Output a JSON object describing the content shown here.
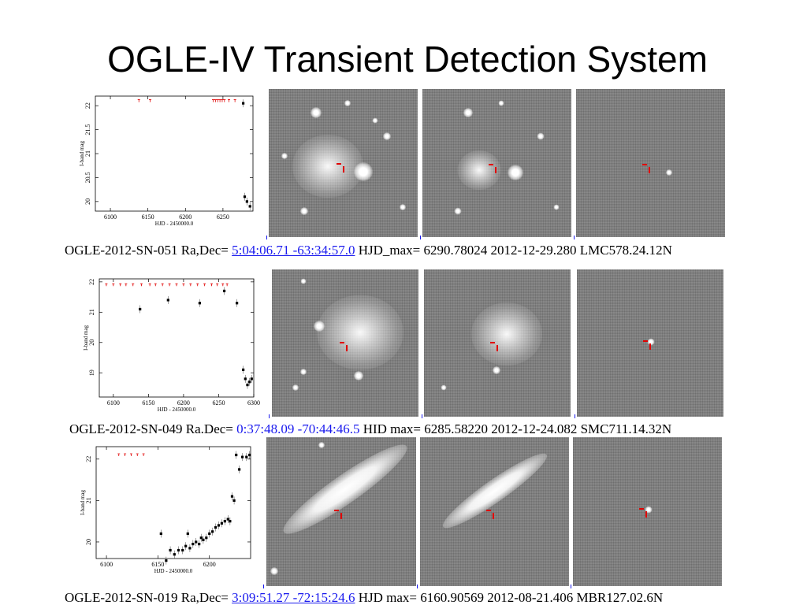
{
  "title": "OGLE-IV Transient Detection System",
  "colors": {
    "link": "#1a1aee",
    "marker": "#e00000"
  },
  "rows": [
    {
      "caption": {
        "prefix": "OGLE-2012-SN-051 Ra,Dec=",
        "coords": "5:04:06.71 -63:34:57.0",
        "suffix": "HJD_max= 6290.78024 2012-12-29.280 LMC578.24.12N"
      },
      "chart_data": {
        "type": "scatter",
        "title": "",
        "xlabel": "HJD - 2450000.0",
        "ylabel": "I-band mag",
        "xlim": [
          6080,
          6290
        ],
        "ylim": [
          22.2,
          19.8
        ],
        "yinvert": true,
        "x_ticks": [
          "6100",
          "6150",
          "6200",
          "6250"
        ],
        "y_ticks": [
          "20",
          "20.5",
          "21",
          "21.5",
          "22"
        ],
        "detections": [
          {
            "x": 6277,
            "y": 22.05
          },
          {
            "x": 6279,
            "y": 20.1
          },
          {
            "x": 6282,
            "y": 20.0
          },
          {
            "x": 6286,
            "y": 19.9
          }
        ],
        "upper_limits": [
          {
            "x": 6138,
            "y": 22.1
          },
          {
            "x": 6153,
            "y": 22.1
          },
          {
            "x": 6237,
            "y": 22.1
          },
          {
            "x": 6240,
            "y": 22.1
          },
          {
            "x": 6243,
            "y": 22.1
          },
          {
            "x": 6246,
            "y": 22.1
          },
          {
            "x": 6249,
            "y": 22.1
          },
          {
            "x": 6252,
            "y": 22.1
          },
          {
            "x": 6258,
            "y": 22.1
          },
          {
            "x": 6266,
            "y": 22.1
          }
        ]
      }
    },
    {
      "caption": {
        "prefix": "OGLE-2012-SN-049 Ra.Dec=",
        "coords": "0:37:48.09 -70:44:46.5",
        "suffix": "HID  max= 6285.58220 2012-12-24.082 SMC711.14.32N"
      },
      "chart_data": {
        "type": "scatter",
        "title": "",
        "xlabel": "HJD - 2450000.0",
        "ylabel": "I-band mag",
        "xlim": [
          6080,
          6300
        ],
        "ylim": [
          22.1,
          18.2
        ],
        "yinvert": true,
        "x_ticks": [
          "6100",
          "6150",
          "6200",
          "6250",
          "6300"
        ],
        "y_ticks": [
          "19",
          "20",
          "21",
          "22"
        ],
        "detections": [
          {
            "x": 6138,
            "y": 21.1
          },
          {
            "x": 6178,
            "y": 21.4
          },
          {
            "x": 6223,
            "y": 21.3
          },
          {
            "x": 6258,
            "y": 21.7
          },
          {
            "x": 6276,
            "y": 21.3
          },
          {
            "x": 6285,
            "y": 19.1
          },
          {
            "x": 6288,
            "y": 18.8
          },
          {
            "x": 6291,
            "y": 18.6
          },
          {
            "x": 6294,
            "y": 18.7
          },
          {
            "x": 6297,
            "y": 18.8
          }
        ],
        "upper_limits": [
          {
            "x": 6090,
            "y": 21.9
          },
          {
            "x": 6100,
            "y": 21.9
          },
          {
            "x": 6110,
            "y": 21.9
          },
          {
            "x": 6118,
            "y": 21.9
          },
          {
            "x": 6128,
            "y": 21.9
          },
          {
            "x": 6140,
            "y": 21.9
          },
          {
            "x": 6152,
            "y": 21.9
          },
          {
            "x": 6160,
            "y": 21.9
          },
          {
            "x": 6170,
            "y": 21.9
          },
          {
            "x": 6180,
            "y": 21.9
          },
          {
            "x": 6190,
            "y": 21.9
          },
          {
            "x": 6200,
            "y": 21.9
          },
          {
            "x": 6210,
            "y": 21.9
          },
          {
            "x": 6220,
            "y": 21.9
          },
          {
            "x": 6230,
            "y": 21.9
          },
          {
            "x": 6240,
            "y": 21.9
          },
          {
            "x": 6248,
            "y": 21.9
          },
          {
            "x": 6256,
            "y": 21.9
          },
          {
            "x": 6262,
            "y": 21.9
          }
        ]
      }
    },
    {
      "caption": {
        "prefix": "OGLE-2012-SN-019 Ra,Dec=",
        "coords": "3:09:51.27 -72:15:24.6",
        "suffix": "HJD  max= 6160.90569 2012-08-21.406 MBR127.02.6N"
      },
      "chart_data": {
        "type": "scatter",
        "title": "",
        "xlabel": "HJD - 2450000.0",
        "ylabel": "I-band mag",
        "xlim": [
          6090,
          6240
        ],
        "ylim": [
          22.3,
          19.6
        ],
        "yinvert": true,
        "x_ticks": [
          "6100",
          "6150",
          "6200"
        ],
        "y_ticks": [
          "20",
          "21",
          "22"
        ],
        "detections": [
          {
            "x": 6153,
            "y": 20.2
          },
          {
            "x": 6158,
            "y": 19.55
          },
          {
            "x": 6162,
            "y": 19.8
          },
          {
            "x": 6166,
            "y": 19.7
          },
          {
            "x": 6170,
            "y": 19.8
          },
          {
            "x": 6174,
            "y": 19.8
          },
          {
            "x": 6177,
            "y": 19.9
          },
          {
            "x": 6179,
            "y": 20.2
          },
          {
            "x": 6181,
            "y": 19.85
          },
          {
            "x": 6184,
            "y": 19.95
          },
          {
            "x": 6187,
            "y": 20.0
          },
          {
            "x": 6190,
            "y": 19.95
          },
          {
            "x": 6192,
            "y": 20.1
          },
          {
            "x": 6194,
            "y": 20.05
          },
          {
            "x": 6197,
            "y": 20.1
          },
          {
            "x": 6200,
            "y": 20.2
          },
          {
            "x": 6203,
            "y": 20.25
          },
          {
            "x": 6206,
            "y": 20.35
          },
          {
            "x": 6209,
            "y": 20.4
          },
          {
            "x": 6212,
            "y": 20.45
          },
          {
            "x": 6215,
            "y": 20.5
          },
          {
            "x": 6218,
            "y": 20.55
          },
          {
            "x": 6220,
            "y": 20.5
          },
          {
            "x": 6222,
            "y": 21.1
          },
          {
            "x": 6224,
            "y": 21.0
          },
          {
            "x": 6226,
            "y": 22.1
          },
          {
            "x": 6229,
            "y": 21.75
          },
          {
            "x": 6232,
            "y": 22.05
          },
          {
            "x": 6236,
            "y": 22.05
          },
          {
            "x": 6239,
            "y": 22.1
          }
        ],
        "upper_limits": [
          {
            "x": 6112,
            "y": 22.1
          },
          {
            "x": 6118,
            "y": 22.1
          },
          {
            "x": 6124,
            "y": 22.1
          },
          {
            "x": 6130,
            "y": 22.1
          },
          {
            "x": 6136,
            "y": 22.1
          }
        ]
      }
    }
  ]
}
